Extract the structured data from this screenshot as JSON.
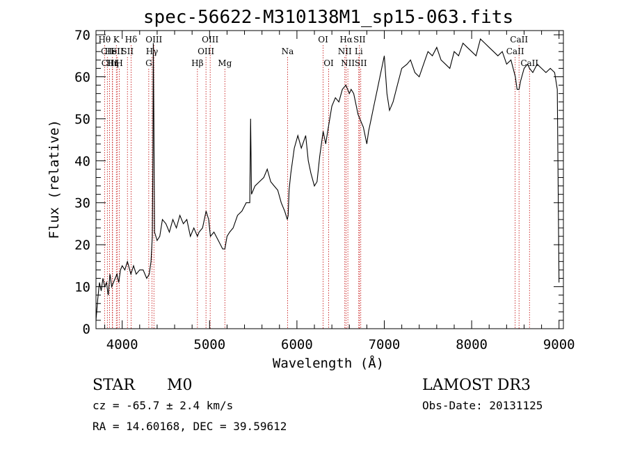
{
  "chart_data": {
    "type": "line",
    "title": "spec-56622-M310138M1_sp15-063.fits",
    "xlabel": "Wavelength (Å)",
    "ylabel": "Flux (relative)",
    "xlim": [
      3700,
      9050
    ],
    "ylim": [
      0,
      71
    ],
    "xticks": [
      4000,
      5000,
      6000,
      7000,
      8000,
      9000
    ],
    "yticks": [
      0,
      10,
      20,
      30,
      40,
      50,
      60,
      70
    ],
    "series": [
      {
        "name": "flux",
        "x": [
          3700,
          3720,
          3740,
          3760,
          3780,
          3800,
          3820,
          3840,
          3860,
          3880,
          3900,
          3920,
          3940,
          3960,
          3980,
          4000,
          4030,
          4060,
          4100,
          4130,
          4160,
          4200,
          4240,
          4280,
          4310,
          4330,
          4345,
          4352,
          4356,
          4362,
          4370,
          4400,
          4430,
          4460,
          4500,
          4540,
          4580,
          4620,
          4660,
          4700,
          4740,
          4780,
          4820,
          4861,
          4880,
          4920,
          4960,
          4990,
          5010,
          5050,
          5100,
          5150,
          5175,
          5200,
          5230,
          5270,
          5320,
          5370,
          5420,
          5460,
          5470,
          5480,
          5520,
          5570,
          5620,
          5660,
          5700,
          5740,
          5780,
          5820,
          5860,
          5890,
          5900,
          5910,
          5930,
          5970,
          6010,
          6050,
          6100,
          6130,
          6160,
          6200,
          6230,
          6260,
          6300,
          6330,
          6360,
          6400,
          6440,
          6480,
          6520,
          6560,
          6600,
          6620,
          6650,
          6680,
          6700,
          6720,
          6760,
          6800,
          6820,
          6850,
          6880,
          6920,
          6960,
          7000,
          7030,
          7060,
          7100,
          7150,
          7200,
          7260,
          7300,
          7350,
          7400,
          7450,
          7500,
          7550,
          7600,
          7650,
          7700,
          7750,
          7800,
          7850,
          7900,
          7950,
          8000,
          8050,
          8100,
          8150,
          8200,
          8250,
          8300,
          8350,
          8400,
          8450,
          8500,
          8520,
          8542,
          8560,
          8600,
          8640,
          8662,
          8700,
          8750,
          8800,
          8850,
          8900,
          8950,
          8980,
          9000
        ],
        "values": [
          2,
          7,
          11,
          9,
          12,
          10,
          11,
          8,
          13,
          10,
          11,
          12,
          13,
          11,
          14,
          15,
          14,
          16,
          13,
          15,
          13,
          14,
          14,
          12,
          13,
          16,
          22,
          42,
          68,
          50,
          23,
          21,
          22,
          26,
          25,
          23,
          26,
          24,
          27,
          25,
          26,
          22,
          24,
          22,
          23,
          24,
          28,
          26,
          22,
          23,
          21,
          19,
          19,
          22,
          23,
          24,
          27,
          28,
          30,
          30,
          50,
          32,
          34,
          35,
          36,
          38,
          35,
          34,
          33,
          30,
          28,
          26,
          27,
          33,
          37,
          43,
          46,
          43,
          46,
          40,
          37,
          34,
          35,
          41,
          47,
          44,
          48,
          53,
          55,
          54,
          57,
          58,
          56,
          57,
          56,
          53,
          51,
          50,
          48,
          44,
          47,
          50,
          53,
          57,
          61,
          65,
          56,
          52,
          54,
          58,
          62,
          63,
          64,
          61,
          60,
          63,
          66,
          65,
          67,
          64,
          63,
          62,
          66,
          65,
          68,
          67,
          66,
          65,
          69,
          68,
          67,
          66,
          65,
          66,
          63,
          64,
          60,
          57,
          57,
          59,
          62,
          63,
          62,
          61,
          63,
          62,
          61,
          62,
          61,
          57,
          11
        ]
      }
    ],
    "lines": [
      {
        "label": "Hθ",
        "wave": 3798,
        "row": 0
      },
      {
        "label": "CII",
        "wave": 3830,
        "row": 1
      },
      {
        "label": "CIII",
        "wave": 3855,
        "row": 2
      },
      {
        "label": "HeI",
        "wave": 3889,
        "row": 1
      },
      {
        "label": "Hη",
        "wave": 3889,
        "row": 2
      },
      {
        "label": "K",
        "wave": 3933,
        "row": 0
      },
      {
        "label": "SII",
        "wave": 3945,
        "row": 1
      },
      {
        "label": "H",
        "wave": 3968,
        "row": 2
      },
      {
        "label": "Hδ",
        "wave": 4102,
        "row": 0
      },
      {
        "label": "SII",
        "wave": 4060,
        "row": 1
      },
      {
        "label": "OIII",
        "wave": 4363,
        "row": 0
      },
      {
        "label": "Hγ",
        "wave": 4341,
        "row": 1
      },
      {
        "label": "G",
        "wave": 4304,
        "row": 2
      },
      {
        "label": "Hβ",
        "wave": 4861,
        "row": 2
      },
      {
        "label": "OIII",
        "wave": 5007,
        "row": 0
      },
      {
        "label": "OIII",
        "wave": 4959,
        "row": 1
      },
      {
        "label": "Mg",
        "wave": 5175,
        "row": 2
      },
      {
        "label": "Na",
        "wave": 5893,
        "row": 1
      },
      {
        "label": "OI",
        "wave": 6300,
        "row": 0
      },
      {
        "label": "OI",
        "wave": 6363,
        "row": 2
      },
      {
        "label": "Hα",
        "wave": 6563,
        "row": 0
      },
      {
        "label": "NII",
        "wave": 6548,
        "row": 1
      },
      {
        "label": "NII",
        "wave": 6583,
        "row": 2
      },
      {
        "label": "SII",
        "wave": 6716,
        "row": 0
      },
      {
        "label": "Li",
        "wave": 6708,
        "row": 1
      },
      {
        "label": "SII",
        "wave": 6731,
        "row": 2
      },
      {
        "label": "CaII",
        "wave": 8542,
        "row": 0
      },
      {
        "label": "CaII",
        "wave": 8498,
        "row": 1
      },
      {
        "label": "CaII",
        "wave": 8662,
        "row": 2
      }
    ]
  },
  "info": {
    "class": "STAR",
    "subclass": "M0",
    "survey": "LAMOST DR3",
    "cz": "cz = -65.7 ± 2.4 km/s",
    "obs_date": "Obs-Date: 20131125",
    "coords": "RA =  14.60168, DEC =  39.59612"
  },
  "colors": {
    "line_marker": "#c00000",
    "spectrum": "#000000",
    "axis": "#000000"
  }
}
